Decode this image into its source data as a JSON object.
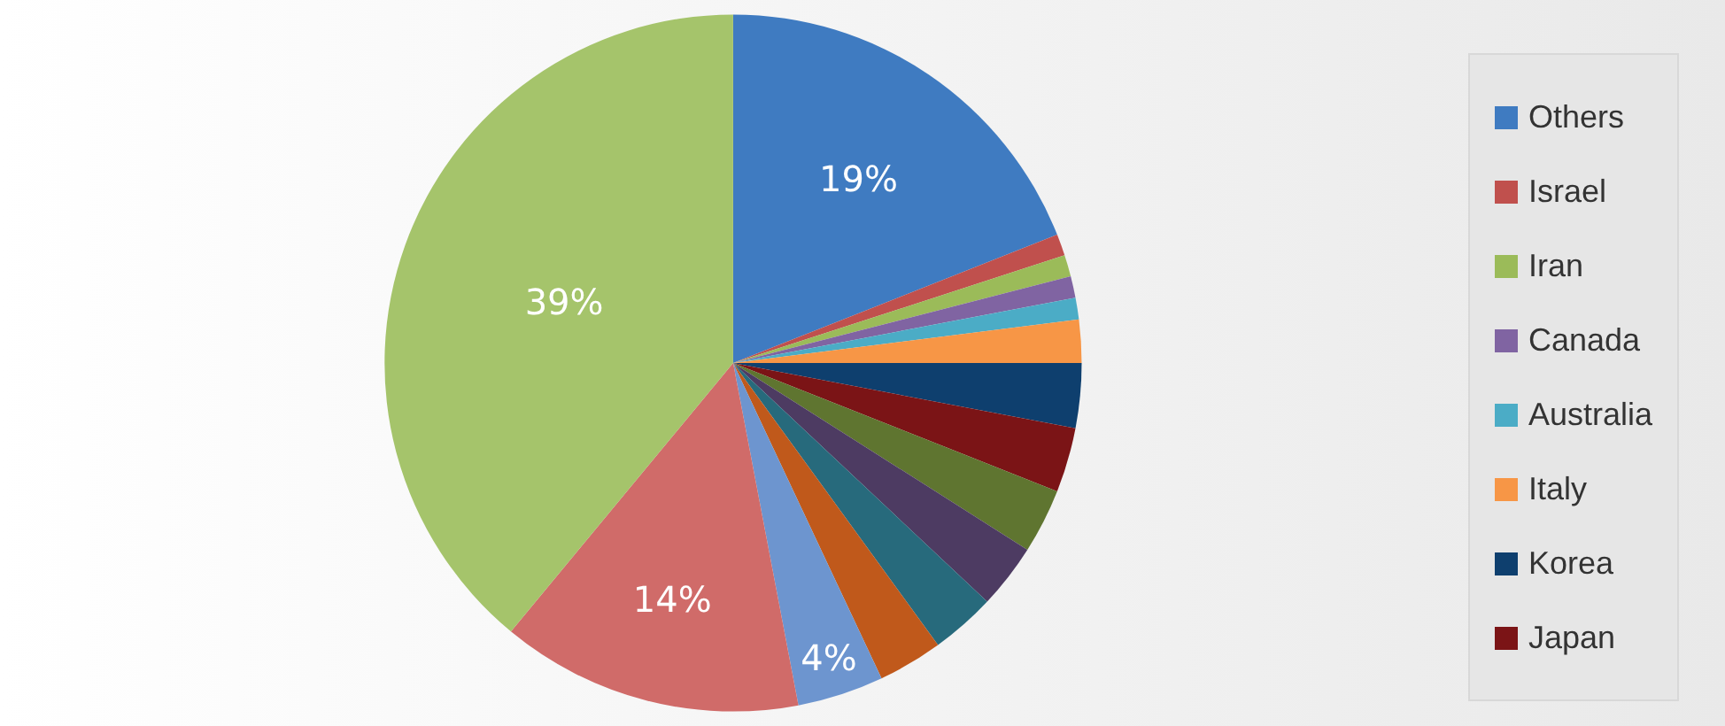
{
  "chart_data": {
    "type": "pie",
    "categories": [
      "Others",
      "Israel",
      "Iran",
      "Canada",
      "Australia",
      "Italy",
      "Korea",
      "Japan",
      null,
      null,
      null,
      null,
      null,
      null,
      null
    ],
    "values": [
      19,
      1,
      1,
      1,
      1,
      2,
      3,
      3,
      3,
      3,
      3,
      3,
      4,
      14,
      39
    ],
    "colors": [
      "#3f7bc1",
      "#c0504d",
      "#9bbb59",
      "#8064a2",
      "#4bacc6",
      "#f79646",
      "#0e3f6e",
      "#7b1416",
      "#5f7530",
      "#4d3b62",
      "#276a7c",
      "#c0591b",
      "#6d95cf",
      "#d06b69",
      "#a5c46b"
    ],
    "value_labels": [
      "19%",
      null,
      null,
      null,
      null,
      null,
      null,
      null,
      null,
      null,
      null,
      null,
      "4%",
      "14%",
      "39%"
    ],
    "legend": "right"
  }
}
